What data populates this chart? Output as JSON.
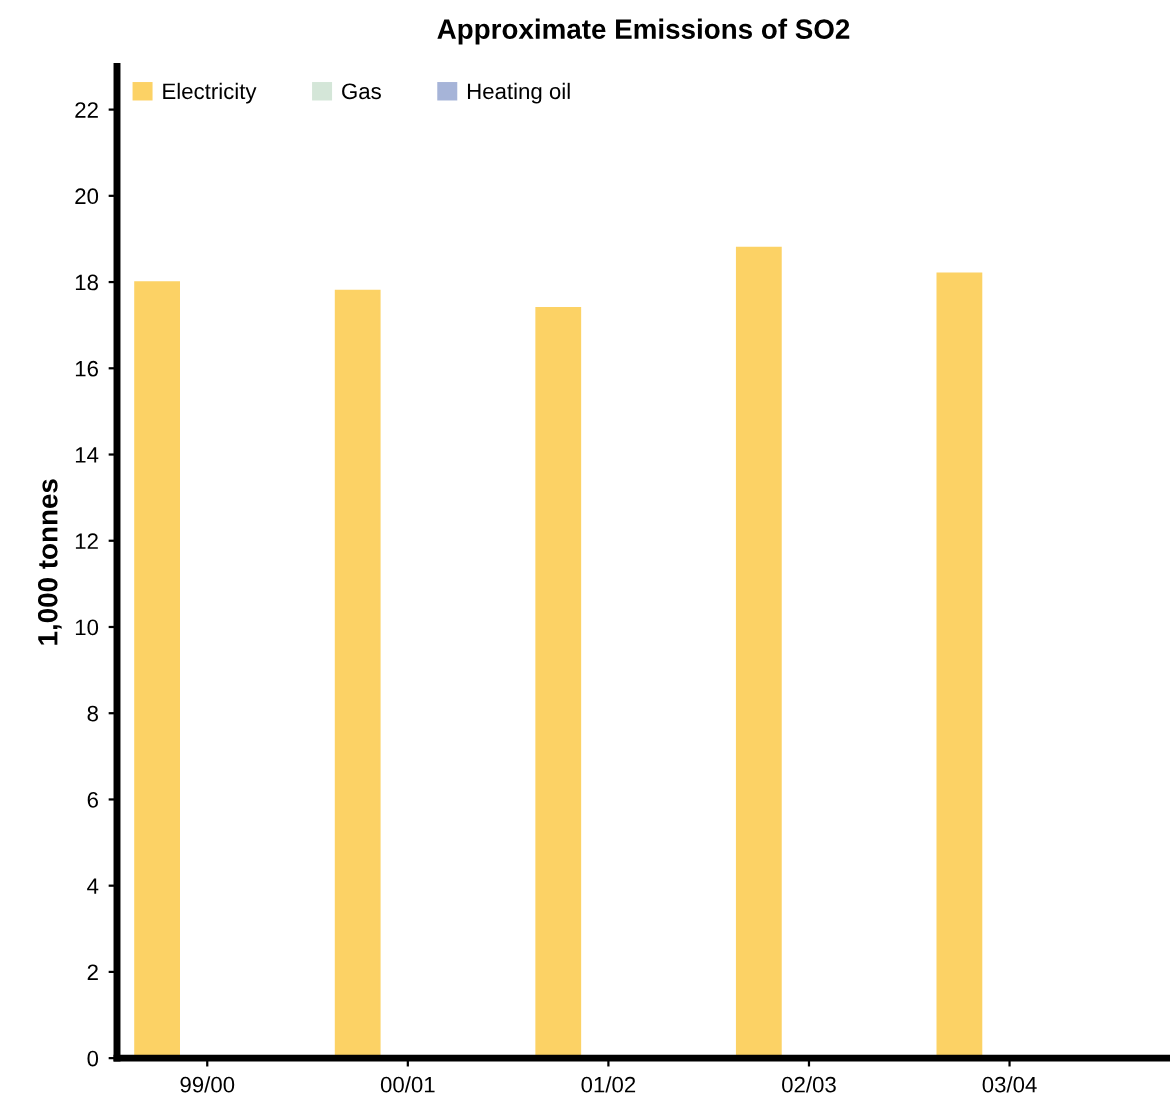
{
  "chart_data": {
    "type": "bar",
    "title": "Approximate Emissions of SO2",
    "ylabel": "1,000 tonnes",
    "categories": [
      "99/00",
      "00/01",
      "01/02",
      "02/03",
      "03/04"
    ],
    "series": [
      {
        "name": "Electricity",
        "color": "#fcd265",
        "values": [
          18.0,
          17.8,
          17.4,
          18.8,
          18.2
        ]
      },
      {
        "name": "Gas",
        "color": "#d4e6d8",
        "values": [
          0,
          0,
          0,
          0,
          0
        ]
      },
      {
        "name": "Heating oil",
        "color": "#a6b4d8",
        "values": [
          0,
          0,
          0,
          0,
          0
        ]
      }
    ],
    "ylim": [
      0,
      23
    ],
    "yticks": [
      0,
      2,
      4,
      6,
      8,
      10,
      12,
      14,
      16,
      18,
      20,
      22
    ],
    "grid": false,
    "legend": "top left"
  }
}
